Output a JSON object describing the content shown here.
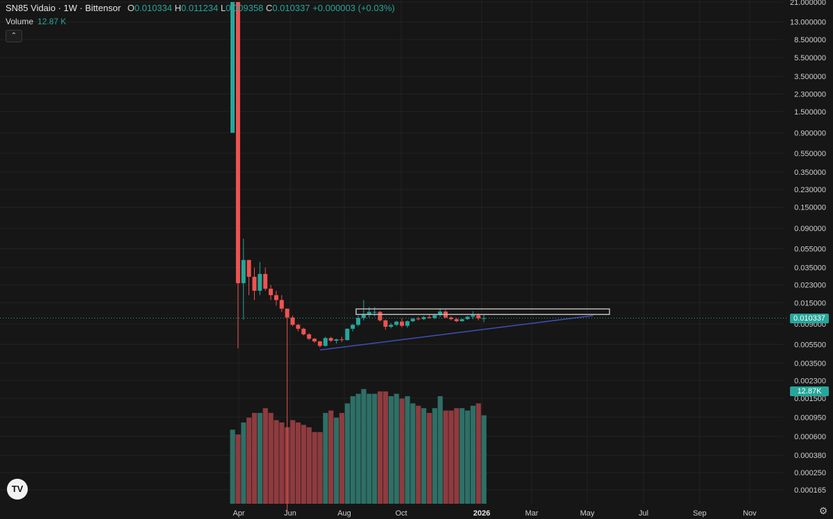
{
  "header": {
    "symbol": "SN85 Vidaio · 1W · Bittensor",
    "open_label": "O",
    "open": "0.010334",
    "high_label": "H",
    "high": "0.011234",
    "low_label": "L",
    "low": "0.009358",
    "close_label": "C",
    "close": "0.010337",
    "change": "+0.000003 (+0.03%)"
  },
  "volume": {
    "label": "Volume",
    "value": "12.87 K",
    "tag": "12.87K"
  },
  "current_price_tag": "0.010337",
  "logo_text": "TV",
  "colors": {
    "up": "#26a69a",
    "down": "#ef5350",
    "background": "#161616",
    "trendline": "#3f51b5",
    "rectangle": "#bdbdbd"
  },
  "chart_data": {
    "type": "candlestick",
    "timeframe": "1W",
    "y_scale": "log",
    "y_ticks": [
      "21.000000",
      "13.000000",
      "8.500000",
      "5.500000",
      "3.500000",
      "2.300000",
      "1.500000",
      "0.900000",
      "0.550000",
      "0.350000",
      "0.230000",
      "0.150000",
      "0.090000",
      "0.055000",
      "0.035000",
      "0.023000",
      "0.015000",
      "0.009000",
      "0.005500",
      "0.003500",
      "0.002300",
      "0.001500",
      "0.000950",
      "0.000600",
      "0.000380",
      "0.000250",
      "0.000165"
    ],
    "x_ticks": [
      "Apr",
      "Jun",
      "Aug",
      "Oct",
      "2026",
      "Mar",
      "May",
      "Jul",
      "Sep",
      "Nov"
    ],
    "current_price": 0.010337,
    "candles": [
      {
        "o": 0.9,
        "h": 21,
        "l": 0.9,
        "c": 21
      },
      {
        "o": 21,
        "h": 21,
        "l": 0.005,
        "c": 0.024
      },
      {
        "o": 0.024,
        "h": 0.07,
        "l": 0.01,
        "c": 0.042
      },
      {
        "o": 0.042,
        "h": 0.042,
        "l": 0.018,
        "c": 0.028
      },
      {
        "o": 0.028,
        "h": 0.035,
        "l": 0.016,
        "c": 0.02
      },
      {
        "o": 0.02,
        "h": 0.04,
        "l": 0.018,
        "c": 0.03
      },
      {
        "o": 0.03,
        "h": 0.035,
        "l": 0.02,
        "c": 0.021
      },
      {
        "o": 0.021,
        "h": 0.023,
        "l": 0.016,
        "c": 0.018
      },
      {
        "o": 0.018,
        "h": 0.02,
        "l": 0.014,
        "c": 0.016
      },
      {
        "o": 0.016,
        "h": 0.018,
        "l": 0.012,
        "c": 0.013
      },
      {
        "o": 0.013,
        "h": 0.013,
        "l": 0.0001,
        "c": 0.0105
      },
      {
        "o": 0.0105,
        "h": 0.011,
        "l": 0.0085,
        "c": 0.0088
      },
      {
        "o": 0.0088,
        "h": 0.009,
        "l": 0.0075,
        "c": 0.008
      },
      {
        "o": 0.008,
        "h": 0.0082,
        "l": 0.0068,
        "c": 0.007
      },
      {
        "o": 0.007,
        "h": 0.0072,
        "l": 0.0061,
        "c": 0.0063
      },
      {
        "o": 0.0063,
        "h": 0.0064,
        "l": 0.0057,
        "c": 0.0059
      },
      {
        "o": 0.0059,
        "h": 0.006,
        "l": 0.0051,
        "c": 0.0053
      },
      {
        "o": 0.0053,
        "h": 0.0066,
        "l": 0.0052,
        "c": 0.0064
      },
      {
        "o": 0.0064,
        "h": 0.0066,
        "l": 0.0058,
        "c": 0.006
      },
      {
        "o": 0.006,
        "h": 0.0063,
        "l": 0.0056,
        "c": 0.0062
      },
      {
        "o": 0.0062,
        "h": 0.0066,
        "l": 0.0058,
        "c": 0.0061
      },
      {
        "o": 0.0061,
        "h": 0.0081,
        "l": 0.006,
        "c": 0.008
      },
      {
        "o": 0.008,
        "h": 0.009,
        "l": 0.0075,
        "c": 0.0088
      },
      {
        "o": 0.0088,
        "h": 0.011,
        "l": 0.0085,
        "c": 0.0104
      },
      {
        "o": 0.0104,
        "h": 0.016,
        "l": 0.0098,
        "c": 0.0112
      },
      {
        "o": 0.0112,
        "h": 0.0135,
        "l": 0.0105,
        "c": 0.012
      },
      {
        "o": 0.012,
        "h": 0.0135,
        "l": 0.0108,
        "c": 0.012
      },
      {
        "o": 0.012,
        "h": 0.0123,
        "l": 0.0095,
        "c": 0.0098
      },
      {
        "o": 0.0098,
        "h": 0.01,
        "l": 0.0078,
        "c": 0.0084
      },
      {
        "o": 0.0084,
        "h": 0.0092,
        "l": 0.0081,
        "c": 0.0088
      },
      {
        "o": 0.0088,
        "h": 0.0097,
        "l": 0.0085,
        "c": 0.0095
      },
      {
        "o": 0.0095,
        "h": 0.0103,
        "l": 0.0083,
        "c": 0.0086
      },
      {
        "o": 0.0086,
        "h": 0.0098,
        "l": 0.0082,
        "c": 0.0096
      },
      {
        "o": 0.0096,
        "h": 0.0104,
        "l": 0.0094,
        "c": 0.0102
      },
      {
        "o": 0.0102,
        "h": 0.0107,
        "l": 0.0098,
        "c": 0.0101
      },
      {
        "o": 0.0101,
        "h": 0.0109,
        "l": 0.0099,
        "c": 0.0106
      },
      {
        "o": 0.0106,
        "h": 0.0112,
        "l": 0.0102,
        "c": 0.0104
      },
      {
        "o": 0.0104,
        "h": 0.0114,
        "l": 0.0101,
        "c": 0.0111
      },
      {
        "o": 0.0111,
        "h": 0.0131,
        "l": 0.0106,
        "c": 0.0121
      },
      {
        "o": 0.0121,
        "h": 0.0126,
        "l": 0.0103,
        "c": 0.0105
      },
      {
        "o": 0.0105,
        "h": 0.0108,
        "l": 0.0098,
        "c": 0.0101
      },
      {
        "o": 0.0101,
        "h": 0.0104,
        "l": 0.0094,
        "c": 0.0096
      },
      {
        "o": 0.0096,
        "h": 0.0102,
        "l": 0.0095,
        "c": 0.0101
      },
      {
        "o": 0.0101,
        "h": 0.0109,
        "l": 0.0099,
        "c": 0.0107
      },
      {
        "o": 0.0107,
        "h": 0.0122,
        "l": 0.0101,
        "c": 0.0111
      },
      {
        "o": 0.0111,
        "h": 0.0116,
        "l": 0.0098,
        "c": 0.0103
      },
      {
        "o": 0.010334,
        "h": 0.011234,
        "l": 0.009358,
        "c": 0.010337
      }
    ],
    "volume": {
      "ylim": [
        0,
        2.7
      ],
      "values": [
        1.55,
        1.45,
        1.7,
        1.8,
        1.9,
        1.9,
        2.0,
        1.9,
        1.75,
        1.7,
        1.6,
        1.75,
        1.7,
        1.65,
        1.6,
        1.5,
        1.5,
        1.9,
        1.95,
        1.8,
        1.9,
        2.1,
        2.25,
        2.3,
        2.4,
        2.3,
        2.3,
        2.35,
        2.35,
        2.25,
        2.3,
        2.2,
        2.25,
        2.1,
        2.05,
        2.0,
        1.9,
        2.0,
        2.25,
        1.95,
        1.95,
        2.0,
        2.0,
        1.95,
        2.05,
        2.1,
        1.85
      ]
    },
    "annotations": {
      "rectangle": {
        "x0_index": 23,
        "x1_index": 69,
        "y_top": 0.0129,
        "y_bottom": 0.0113
      },
      "trendline": {
        "x0_index": 16,
        "y0": 0.0048,
        "x1_index": 66,
        "y1": 0.011
      }
    }
  }
}
